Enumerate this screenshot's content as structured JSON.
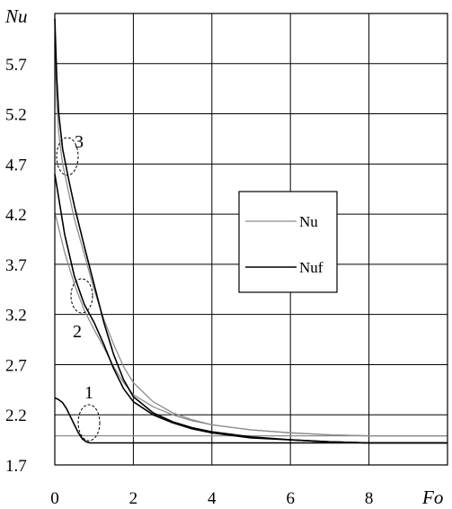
{
  "chart_data": {
    "type": "line",
    "xlabel": "Fo",
    "ylabel": "Nu",
    "xlim": [
      0,
      10
    ],
    "ylim": [
      1.7,
      6.2
    ],
    "x_ticks": [
      "0",
      "2",
      "4",
      "6",
      "8"
    ],
    "y_ticks": [
      "1.7",
      "2.2",
      "2.7",
      "3.2",
      "3.7",
      "4.2",
      "4.7",
      "5.2",
      "5.7"
    ],
    "grid": true,
    "legend": {
      "position": "center-right",
      "entries": [
        {
          "name": "Nu",
          "color": "#8c8c8c"
        },
        {
          "name": "Nuf",
          "color": "#000000"
        }
      ]
    },
    "annotations": [
      {
        "text": "1",
        "x": 0.9,
        "y": 2.05
      },
      {
        "text": "2",
        "x": 0.72,
        "y": 3.35
      },
      {
        "text": "3",
        "x": 0.32,
        "y": 4.72
      }
    ],
    "series": [
      {
        "name": "Nu",
        "curve": "1",
        "color": "#8c8c8c",
        "x": [
          0,
          1,
          2,
          4,
          6,
          8,
          10
        ],
        "y": [
          1.99,
          1.99,
          1.99,
          1.99,
          1.99,
          1.99,
          1.99
        ]
      },
      {
        "name": "Nuf",
        "curve": "1",
        "color": "#000000",
        "x": [
          0,
          0.1,
          0.2,
          0.3,
          0.4,
          0.5,
          0.6,
          0.7,
          0.8,
          0.9,
          1.0,
          1.5,
          2,
          4,
          6,
          8,
          10
        ],
        "y": [
          2.37,
          2.35,
          2.32,
          2.26,
          2.18,
          2.1,
          2.02,
          1.96,
          1.93,
          1.92,
          1.92,
          1.92,
          1.92,
          1.92,
          1.92,
          1.92,
          1.92
        ]
      },
      {
        "name": "Nu",
        "curve": "2",
        "color": "#8c8c8c",
        "x": [
          0,
          0.25,
          0.5,
          0.75,
          1.0,
          1.25,
          1.5,
          1.75,
          2.0,
          2.5,
          3,
          3.5,
          4,
          5,
          6,
          7,
          8,
          9,
          10
        ],
        "y": [
          4.22,
          3.82,
          3.5,
          3.24,
          3.05,
          2.87,
          2.68,
          2.52,
          2.4,
          2.28,
          2.2,
          2.14,
          2.1,
          2.05,
          2.02,
          2.0,
          1.99,
          1.99,
          1.99
        ]
      },
      {
        "name": "Nuf",
        "curve": "2",
        "color": "#000000",
        "x": [
          0,
          0.25,
          0.5,
          0.75,
          1.0,
          1.25,
          1.5,
          1.75,
          2.0,
          2.5,
          3,
          3.5,
          4,
          5,
          6,
          7,
          8,
          9,
          10
        ],
        "y": [
          4.6,
          4.0,
          3.58,
          3.3,
          3.12,
          2.9,
          2.66,
          2.46,
          2.33,
          2.2,
          2.12,
          2.06,
          2.02,
          1.97,
          1.95,
          1.93,
          1.92,
          1.92,
          1.92
        ]
      },
      {
        "name": "Nu",
        "curve": "3",
        "color": "#8c8c8c",
        "x": [
          0,
          0.05,
          0.1,
          0.2,
          0.35,
          0.5,
          0.75,
          1.0,
          1.25,
          1.5,
          1.75,
          2.0,
          2.5,
          3,
          3.5,
          4,
          5,
          6,
          7,
          8,
          9,
          10
        ],
        "y": [
          5.9,
          5.3,
          5.0,
          4.7,
          4.42,
          4.15,
          3.8,
          3.45,
          3.15,
          2.9,
          2.68,
          2.52,
          2.33,
          2.22,
          2.15,
          2.1,
          2.05,
          2.02,
          2.0,
          1.99,
          1.99,
          1.99
        ]
      },
      {
        "name": "Nuf",
        "curve": "3",
        "color": "#000000",
        "x": [
          0,
          0.05,
          0.1,
          0.2,
          0.35,
          0.5,
          0.75,
          1.0,
          1.25,
          1.5,
          1.75,
          2.0,
          2.5,
          3,
          3.5,
          4,
          5,
          6,
          7,
          8,
          9,
          10
        ],
        "y": [
          6.15,
          5.55,
          5.2,
          4.85,
          4.55,
          4.28,
          3.88,
          3.5,
          3.12,
          2.8,
          2.55,
          2.38,
          2.22,
          2.13,
          2.07,
          2.03,
          1.98,
          1.95,
          1.93,
          1.92,
          1.92,
          1.92
        ]
      }
    ]
  }
}
